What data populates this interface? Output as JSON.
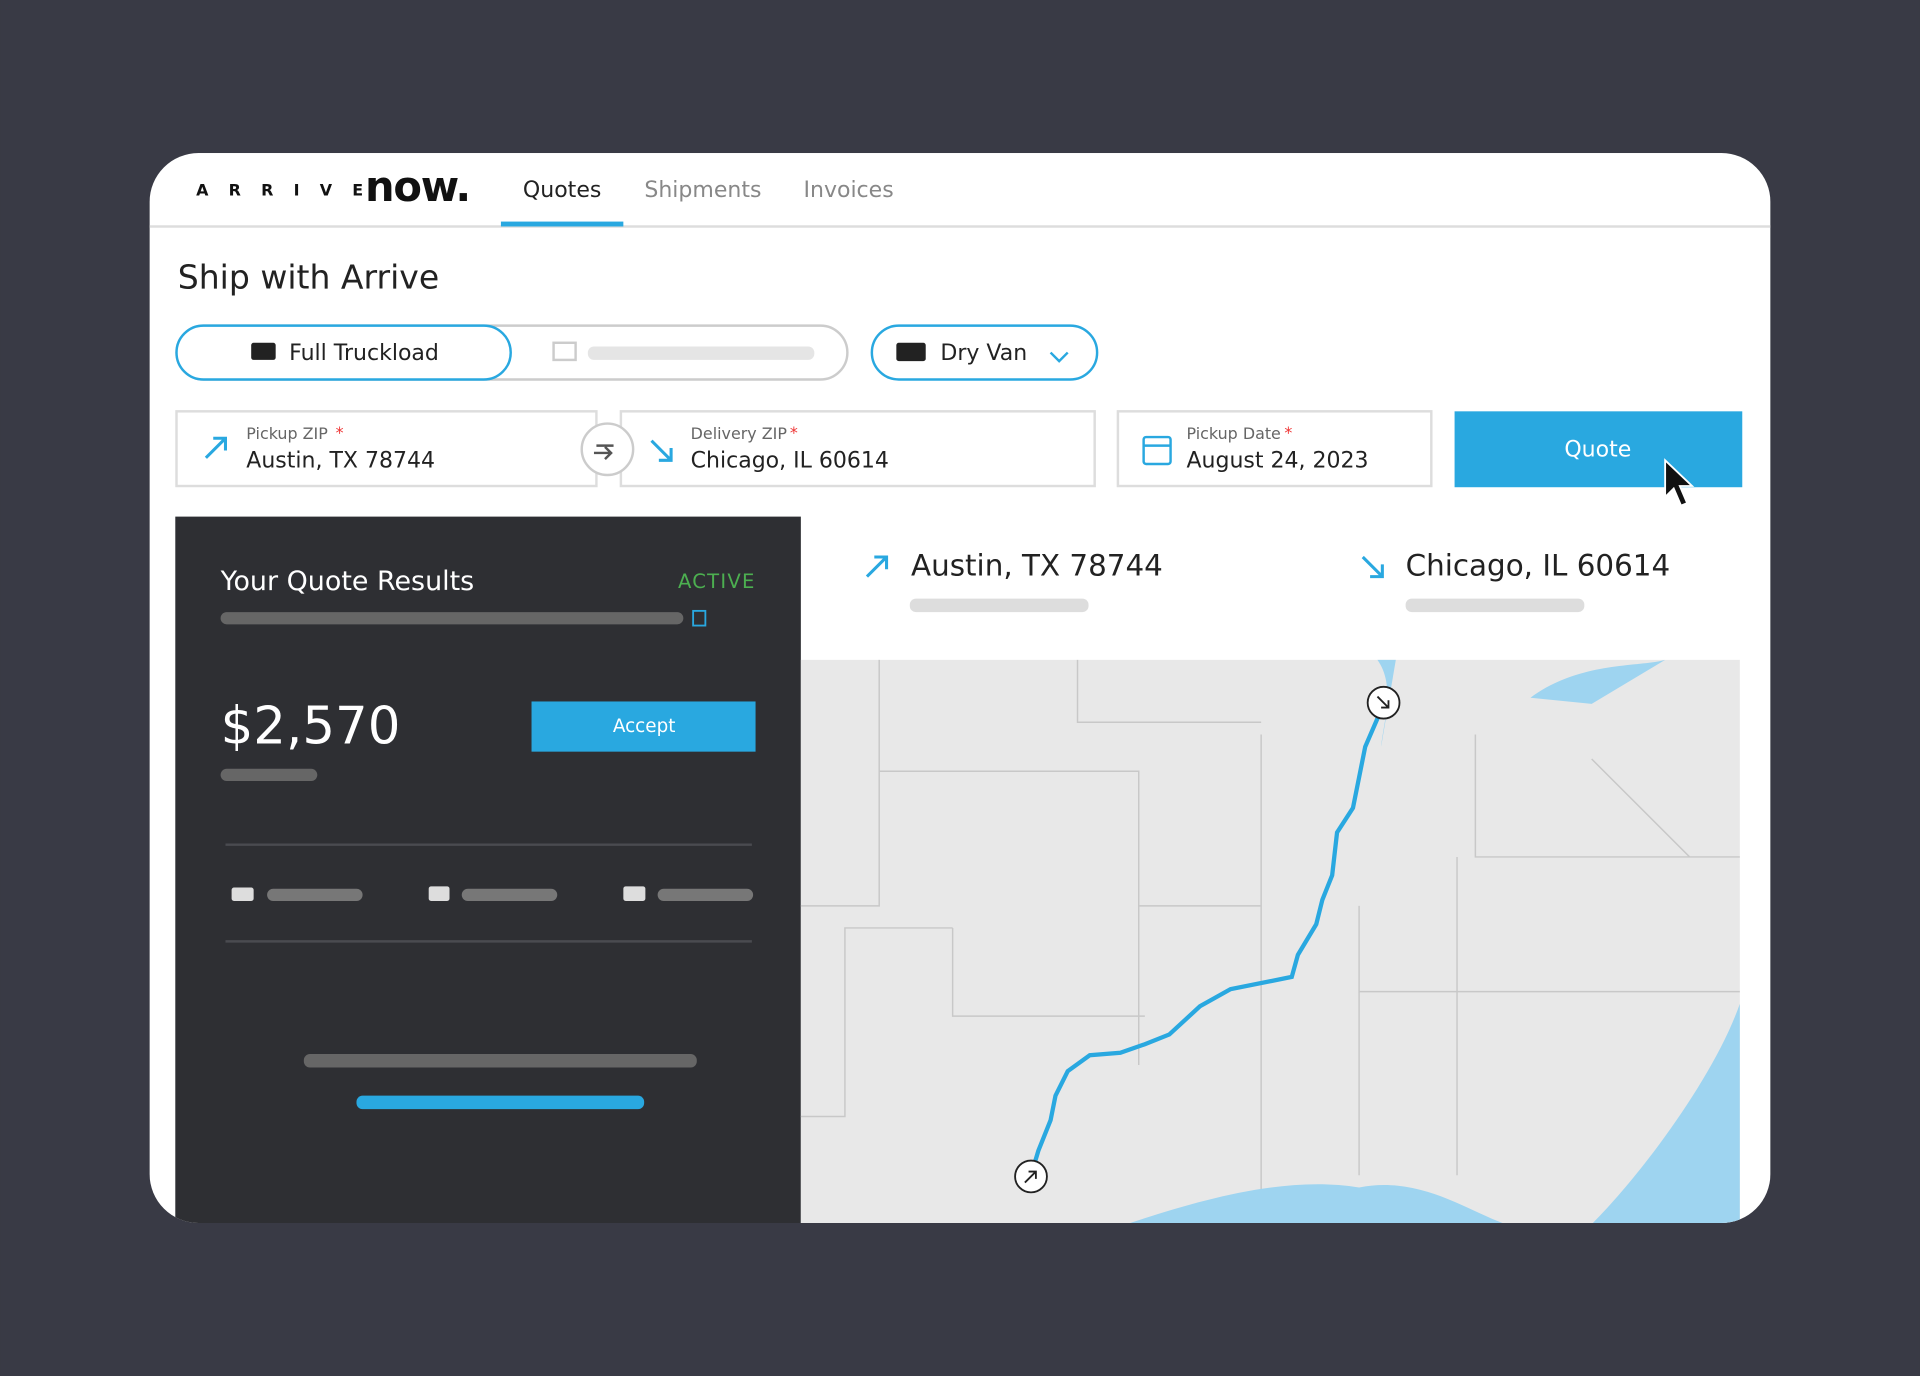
{
  "header": {
    "logo_letters": "A R R I V E",
    "logo_word": "now.",
    "tabs": [
      "Quotes",
      "Shipments",
      "Invoices"
    ]
  },
  "page_title": "Ship with Arrive",
  "mode": {
    "selected": "Full Truckload",
    "equipment": "Dry Van"
  },
  "fields": [
    {
      "label": "Pickup ZIP",
      "required": "*",
      "value": "Austin, TX 78744"
    },
    {
      "label": "Delivery ZIP",
      "required": "*",
      "value": "Chicago, IL 60614"
    },
    {
      "label": "Pickup Date",
      "required": "*",
      "value": "August 24, 2023"
    }
  ],
  "quote_button": "Quote",
  "results": {
    "title": "Your Quote Results",
    "status": "ACTIVE",
    "price": "$2,570",
    "accept": "Accept"
  },
  "route": {
    "origin": "Austin, TX 78744",
    "destination": "Chicago, IL 60614"
  }
}
